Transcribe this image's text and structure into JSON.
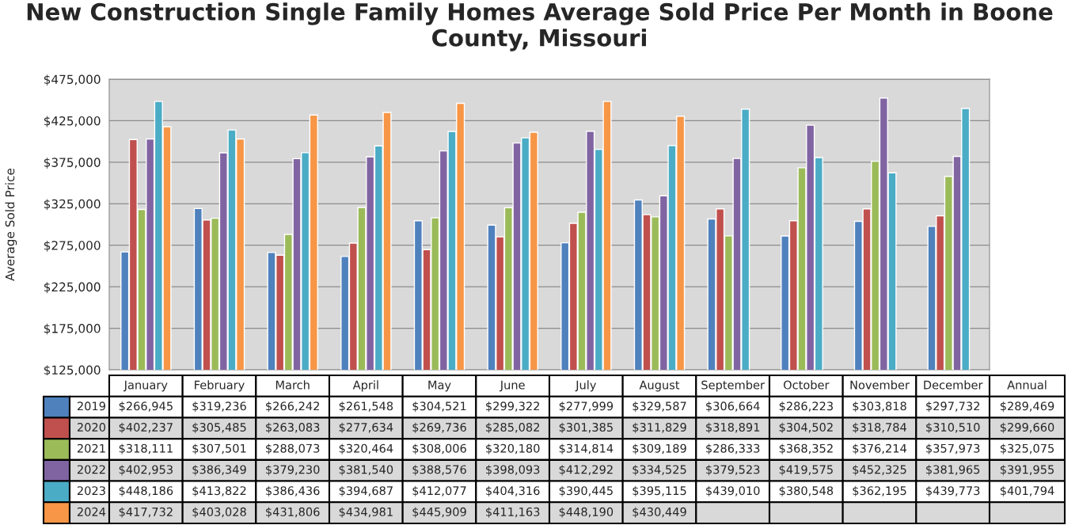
{
  "chart_data": {
    "type": "bar",
    "title": "New Construction Single Family Homes Average Sold Price Per Month in Boone County, Missouri",
    "ylabel": "Average Sold Price",
    "categories": [
      "January",
      "February",
      "March",
      "April",
      "May",
      "June",
      "July",
      "August",
      "September",
      "October",
      "November",
      "December"
    ],
    "series": [
      {
        "name": "2019",
        "color": "#4f81bd",
        "values": [
          266945,
          319236,
          266242,
          261548,
          304521,
          299322,
          277999,
          329587,
          306664,
          286223,
          303818,
          297732
        ],
        "value_labels": [
          "$266,945",
          "$319,236",
          "$266,242",
          "$261,548",
          "$304,521",
          "$299,322",
          "$277,999",
          "$329,587",
          "$306,664",
          "$286,223",
          "$303,818",
          "$297,732"
        ]
      },
      {
        "name": "2020",
        "color": "#c0504d",
        "values": [
          402237,
          305485,
          263083,
          277634,
          269736,
          285082,
          301385,
          311829,
          318891,
          304502,
          318784,
          310510
        ],
        "value_labels": [
          "$402,237",
          "$305,485",
          "$263,083",
          "$277,634",
          "$269,736",
          "$285,082",
          "$301,385",
          "$311,829",
          "$318,891",
          "$304,502",
          "$318,784",
          "$310,510"
        ]
      },
      {
        "name": "2021",
        "color": "#9bbb59",
        "values": [
          318111,
          307501,
          288073,
          320464,
          308006,
          320180,
          314814,
          309189,
          286333,
          368352,
          376214,
          357973
        ],
        "value_labels": [
          "$318,111",
          "$307,501",
          "$288,073",
          "$320,464",
          "$308,006",
          "$320,180",
          "$314,814",
          "$309,189",
          "$286,333",
          "$368,352",
          "$376,214",
          "$357,973"
        ]
      },
      {
        "name": "2022",
        "color": "#8064a2",
        "values": [
          402953,
          386349,
          379230,
          381540,
          388576,
          398093,
          412292,
          334525,
          379523,
          419575,
          452325,
          381965
        ],
        "value_labels": [
          "$402,953",
          "$386,349",
          "$379,230",
          "$381,540",
          "$388,576",
          "$398,093",
          "$412,292",
          "$334,525",
          "$379,523",
          "$419,575",
          "$452,325",
          "$381,965"
        ]
      },
      {
        "name": "2023",
        "color": "#4bacc6",
        "values": [
          448186,
          413822,
          386436,
          394687,
          412077,
          404316,
          390445,
          395115,
          439010,
          380548,
          362195,
          439773
        ],
        "value_labels": [
          "$448,186",
          "$413,822",
          "$386,436",
          "$394,687",
          "$412,077",
          "$404,316",
          "$390,445",
          "$395,115",
          "$439,010",
          "$380,548",
          "$362,195",
          "$439,773"
        ]
      },
      {
        "name": "2024",
        "color": "#f79646",
        "values": [
          417732,
          403028,
          431806,
          434981,
          445909,
          411163,
          448190,
          430449,
          null,
          null,
          null,
          null
        ],
        "value_labels": [
          "$417,732",
          "$403,028",
          "$431,806",
          "$434,981",
          "$445,909",
          "$411,163",
          "$448,190",
          "$430,449",
          null,
          null,
          null,
          null
        ]
      }
    ],
    "ylim": [
      125000,
      475000
    ],
    "yticks": [
      {
        "value": 125000,
        "label": "$125,000"
      },
      {
        "value": 175000,
        "label": "$175,000"
      },
      {
        "value": 225000,
        "label": "$225,000"
      },
      {
        "value": 275000,
        "label": "$275,000"
      },
      {
        "value": 325000,
        "label": "$325,000"
      },
      {
        "value": 375000,
        "label": "$375,000"
      },
      {
        "value": 425000,
        "label": "$425,000"
      },
      {
        "value": 475000,
        "label": "$475,000"
      }
    ],
    "grid": "y",
    "legend": "bottom",
    "annotations": [
      "Annual",
      "$289,469",
      "$299,660",
      "$325,075",
      "$391,955",
      "$401,794"
    ]
  }
}
